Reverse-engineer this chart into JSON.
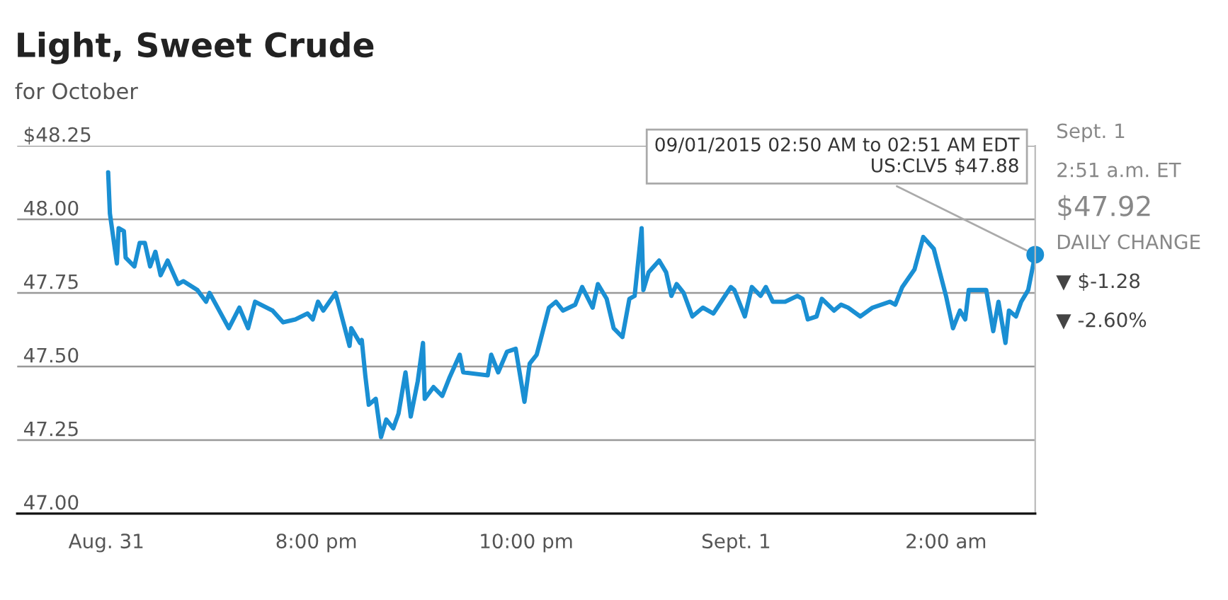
{
  "chart_data": {
    "type": "line",
    "title": "Light, Sweet Crude",
    "subtitle": "for October",
    "x": [
      "2015-08-31T18:01",
      "2015-08-31T18:02",
      "2015-08-31T18:06",
      "2015-08-31T18:07",
      "2015-08-31T18:10",
      "2015-08-31T18:11",
      "2015-08-31T18:16",
      "2015-08-31T18:19",
      "2015-08-31T18:22",
      "2015-08-31T18:25",
      "2015-08-31T18:28",
      "2015-08-31T18:31",
      "2015-08-31T18:35",
      "2015-08-31T18:41",
      "2015-08-31T18:44",
      "2015-08-31T18:52",
      "2015-08-31T18:57",
      "2015-08-31T18:59",
      "2015-08-31T19:10",
      "2015-08-31T19:16",
      "2015-08-31T19:21",
      "2015-08-31T19:25",
      "2015-08-31T19:35",
      "2015-08-31T19:41",
      "2015-08-31T19:48",
      "2015-08-31T19:55",
      "2015-08-31T19:58",
      "2015-08-31T20:01",
      "2015-08-31T20:04",
      "2015-08-31T20:11",
      "2015-08-31T20:15",
      "2015-08-31T20:19",
      "2015-08-31T20:20",
      "2015-08-31T20:25",
      "2015-08-31T20:26",
      "2015-08-31T20:28",
      "2015-08-31T20:30",
      "2015-08-31T20:34",
      "2015-08-31T20:37",
      "2015-08-31T20:40",
      "2015-08-31T20:44",
      "2015-08-31T20:47",
      "2015-08-31T20:51",
      "2015-08-31T20:54",
      "2015-08-31T20:58",
      "2015-08-31T21:01",
      "2015-08-31T21:02",
      "2015-08-31T21:07",
      "2015-08-31T21:12",
      "2015-08-31T21:16",
      "2015-08-31T21:22",
      "2015-08-31T21:24",
      "2015-08-31T21:38",
      "2015-08-31T21:40",
      "2015-08-31T21:44",
      "2015-08-31T21:49",
      "2015-08-31T21:54",
      "2015-08-31T21:59",
      "2015-08-31T22:02",
      "2015-08-31T22:06",
      "2015-08-31T22:13",
      "2015-08-31T22:17",
      "2015-08-31T22:21",
      "2015-08-31T22:28",
      "2015-08-31T22:32",
      "2015-08-31T22:38",
      "2015-08-31T22:41",
      "2015-08-31T22:46",
      "2015-08-31T22:50",
      "2015-08-31T22:55",
      "2015-08-31T22:59",
      "2015-08-31T23:02",
      "2015-08-31T23:06",
      "2015-08-31T23:07",
      "2015-08-31T23:10",
      "2015-08-31T23:16",
      "2015-08-31T23:20",
      "2015-08-31T23:23",
      "2015-08-31T23:26",
      "2015-08-31T23:30",
      "2015-08-31T23:35",
      "2015-08-31T23:41",
      "2015-08-31T23:47",
      "2015-08-31T23:57",
      "2015-08-31T23:59",
      "2015-09-01T00:05",
      "2015-09-01T00:09",
      "2015-09-01T00:14",
      "2015-09-01T00:17",
      "2015-09-01T00:21",
      "2015-09-01T00:28",
      "2015-09-01T00:35",
      "2015-09-01T00:38",
      "2015-09-01T00:41",
      "2015-09-01T00:46",
      "2015-09-01T00:49",
      "2015-09-01T00:56",
      "2015-09-01T01:00",
      "2015-09-01T01:04",
      "2015-09-01T01:11",
      "2015-09-01T01:18",
      "2015-09-01T01:28",
      "2015-09-01T01:31",
      "2015-09-01T01:35",
      "2015-09-01T01:42",
      "2015-09-01T01:47",
      "2015-09-01T01:53",
      "2015-09-01T02:00",
      "2015-09-01T02:04",
      "2015-09-01T02:08",
      "2015-09-01T02:11",
      "2015-09-01T02:13",
      "2015-09-01T02:23",
      "2015-09-01T02:27",
      "2015-09-01T02:30",
      "2015-09-01T02:34",
      "2015-09-01T02:36",
      "2015-09-01T02:40",
      "2015-09-01T02:43",
      "2015-09-01T02:47",
      "2015-09-01T02:50",
      "2015-09-01T02:51"
    ],
    "series": [
      {
        "color": "#1a8fd3",
        "values": [
          48.16,
          48.02,
          47.85,
          47.97,
          47.96,
          47.87,
          47.84,
          47.92,
          47.92,
          47.84,
          47.89,
          47.81,
          47.86,
          47.78,
          47.79,
          47.76,
          47.72,
          47.75,
          47.63,
          47.7,
          47.63,
          47.72,
          47.69,
          47.65,
          47.66,
          47.68,
          47.66,
          47.72,
          47.69,
          47.75,
          47.66,
          47.57,
          47.63,
          47.58,
          47.59,
          47.47,
          47.37,
          47.39,
          47.26,
          47.32,
          47.29,
          47.34,
          47.48,
          47.33,
          47.45,
          47.58,
          47.39,
          47.43,
          47.4,
          47.46,
          47.54,
          47.48,
          47.47,
          47.54,
          47.48,
          47.55,
          47.56,
          47.38,
          47.51,
          47.54,
          47.7,
          47.72,
          47.69,
          47.71,
          47.77,
          47.7,
          47.78,
          47.73,
          47.63,
          47.6,
          47.73,
          47.74,
          47.97,
          47.76,
          47.82,
          47.86,
          47.82,
          47.74,
          47.78,
          47.75,
          47.67,
          47.7,
          47.68,
          47.77,
          47.76,
          47.67,
          47.77,
          47.74,
          47.77,
          47.72,
          47.72,
          47.74,
          47.73,
          47.66,
          47.67,
          47.73,
          47.69,
          47.71,
          47.7,
          47.67,
          47.7,
          47.72,
          47.71,
          47.77,
          47.83,
          47.94,
          47.9,
          47.74,
          47.63,
          47.69,
          47.66,
          47.76,
          47.76,
          47.62,
          47.72,
          47.58,
          47.69,
          47.67,
          47.72,
          47.76,
          47.85,
          47.88
        ]
      }
    ],
    "xlim": [
      "2015-08-31T17:09",
      "2015-09-01T02:51"
    ],
    "xticks": [
      {
        "value": "2015-08-31T18:00",
        "label": "Aug. 31"
      },
      {
        "value": "2015-08-31T20:00",
        "label": "8:00 pm"
      },
      {
        "value": "2015-08-31T22:00",
        "label": "10:00 pm"
      },
      {
        "value": "2015-09-01T00:00",
        "label": "Sept. 1"
      },
      {
        "value": "2015-09-01T02:00",
        "label": "2:00 am"
      }
    ],
    "ylim": [
      47.0,
      48.25
    ],
    "yticks": [
      {
        "value": 47.0,
        "label": "47.00"
      },
      {
        "value": 47.25,
        "label": "47.25"
      },
      {
        "value": 47.5,
        "label": "47.50"
      },
      {
        "value": 47.75,
        "label": "47.75"
      },
      {
        "value": 48.0,
        "label": "48.00"
      },
      {
        "value": 48.25,
        "label": "$48.25"
      }
    ],
    "grid": "y",
    "marker": "none",
    "line_style": "solid",
    "annotations": [
      {
        "text": "09/01/2015 02:50 AM to 02:51 AM EDT\nUS:CLV5 $47.88",
        "x": "2015-09-01T02:51",
        "y": 47.88
      },
      "Sept. 1",
      "2:51 a.m. ET",
      "$47.92",
      "DAILY CHANGE",
      "▼ $-1.28",
      "▼ -2.60%"
    ]
  }
}
